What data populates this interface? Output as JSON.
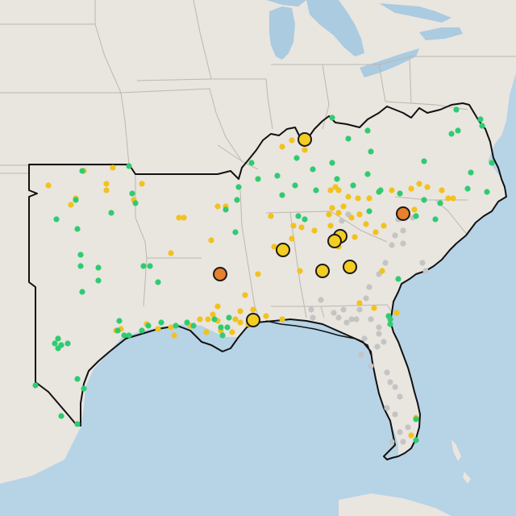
{
  "map": {
    "colors": {
      "land": "#e9e5df",
      "water": "#b7d3e6",
      "lake": "#aacbe0",
      "state_border": "#bdb7af",
      "region_outline": "#111111",
      "green": "#2ecc71",
      "yellow": "#f2c21d",
      "gray": "#c4c4c4",
      "orange": "#e8802c",
      "marker_yellow": "#f3cd22"
    },
    "legend": [],
    "layers": [
      "land",
      "water",
      "lakes",
      "state-borders",
      "region-outline",
      "small-points",
      "large-markers"
    ]
  }
}
